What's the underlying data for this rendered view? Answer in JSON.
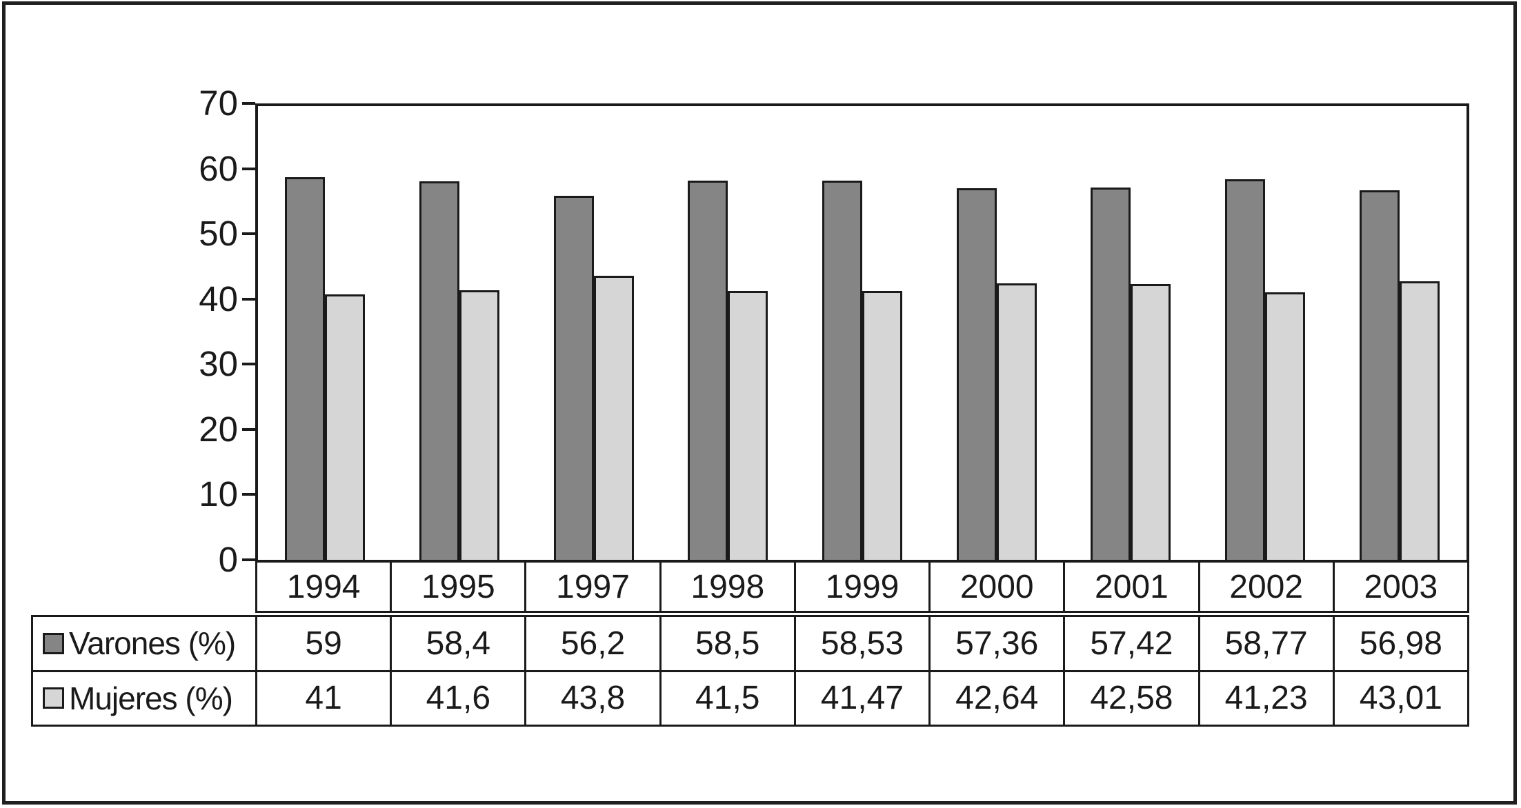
{
  "chart_data": {
    "type": "bar",
    "title": "",
    "xlabel": "",
    "ylabel": "",
    "categories": [
      "1994",
      "1995",
      "1997",
      "1998",
      "1999",
      "2000",
      "2001",
      "2002",
      "2003"
    ],
    "series": [
      {
        "name": "Varones (%)",
        "values": [
          59,
          58.4,
          56.2,
          58.5,
          58.53,
          57.36,
          57.42,
          58.77,
          56.98
        ],
        "display": [
          "59",
          "58,4",
          "56,2",
          "58,5",
          "58,53",
          "57,36",
          "57,42",
          "58,77",
          "56,98"
        ],
        "color": "#858585"
      },
      {
        "name": "Mujeres (%)",
        "values": [
          41,
          41.6,
          43.8,
          41.5,
          41.47,
          42.64,
          42.58,
          41.23,
          43.01
        ],
        "display": [
          "41",
          "41,6",
          "43,8",
          "41,5",
          "41,47",
          "42,64",
          "42,58",
          "41,23",
          "43,01"
        ],
        "color": "#d6d6d6"
      }
    ],
    "ylim": [
      0,
      70
    ],
    "yticks": [
      0,
      10,
      20,
      30,
      40,
      50,
      60,
      70
    ],
    "grid": false,
    "legend_position": "table-left",
    "axis_color": "#1a1a1a",
    "background_color": "#ffffff"
  }
}
